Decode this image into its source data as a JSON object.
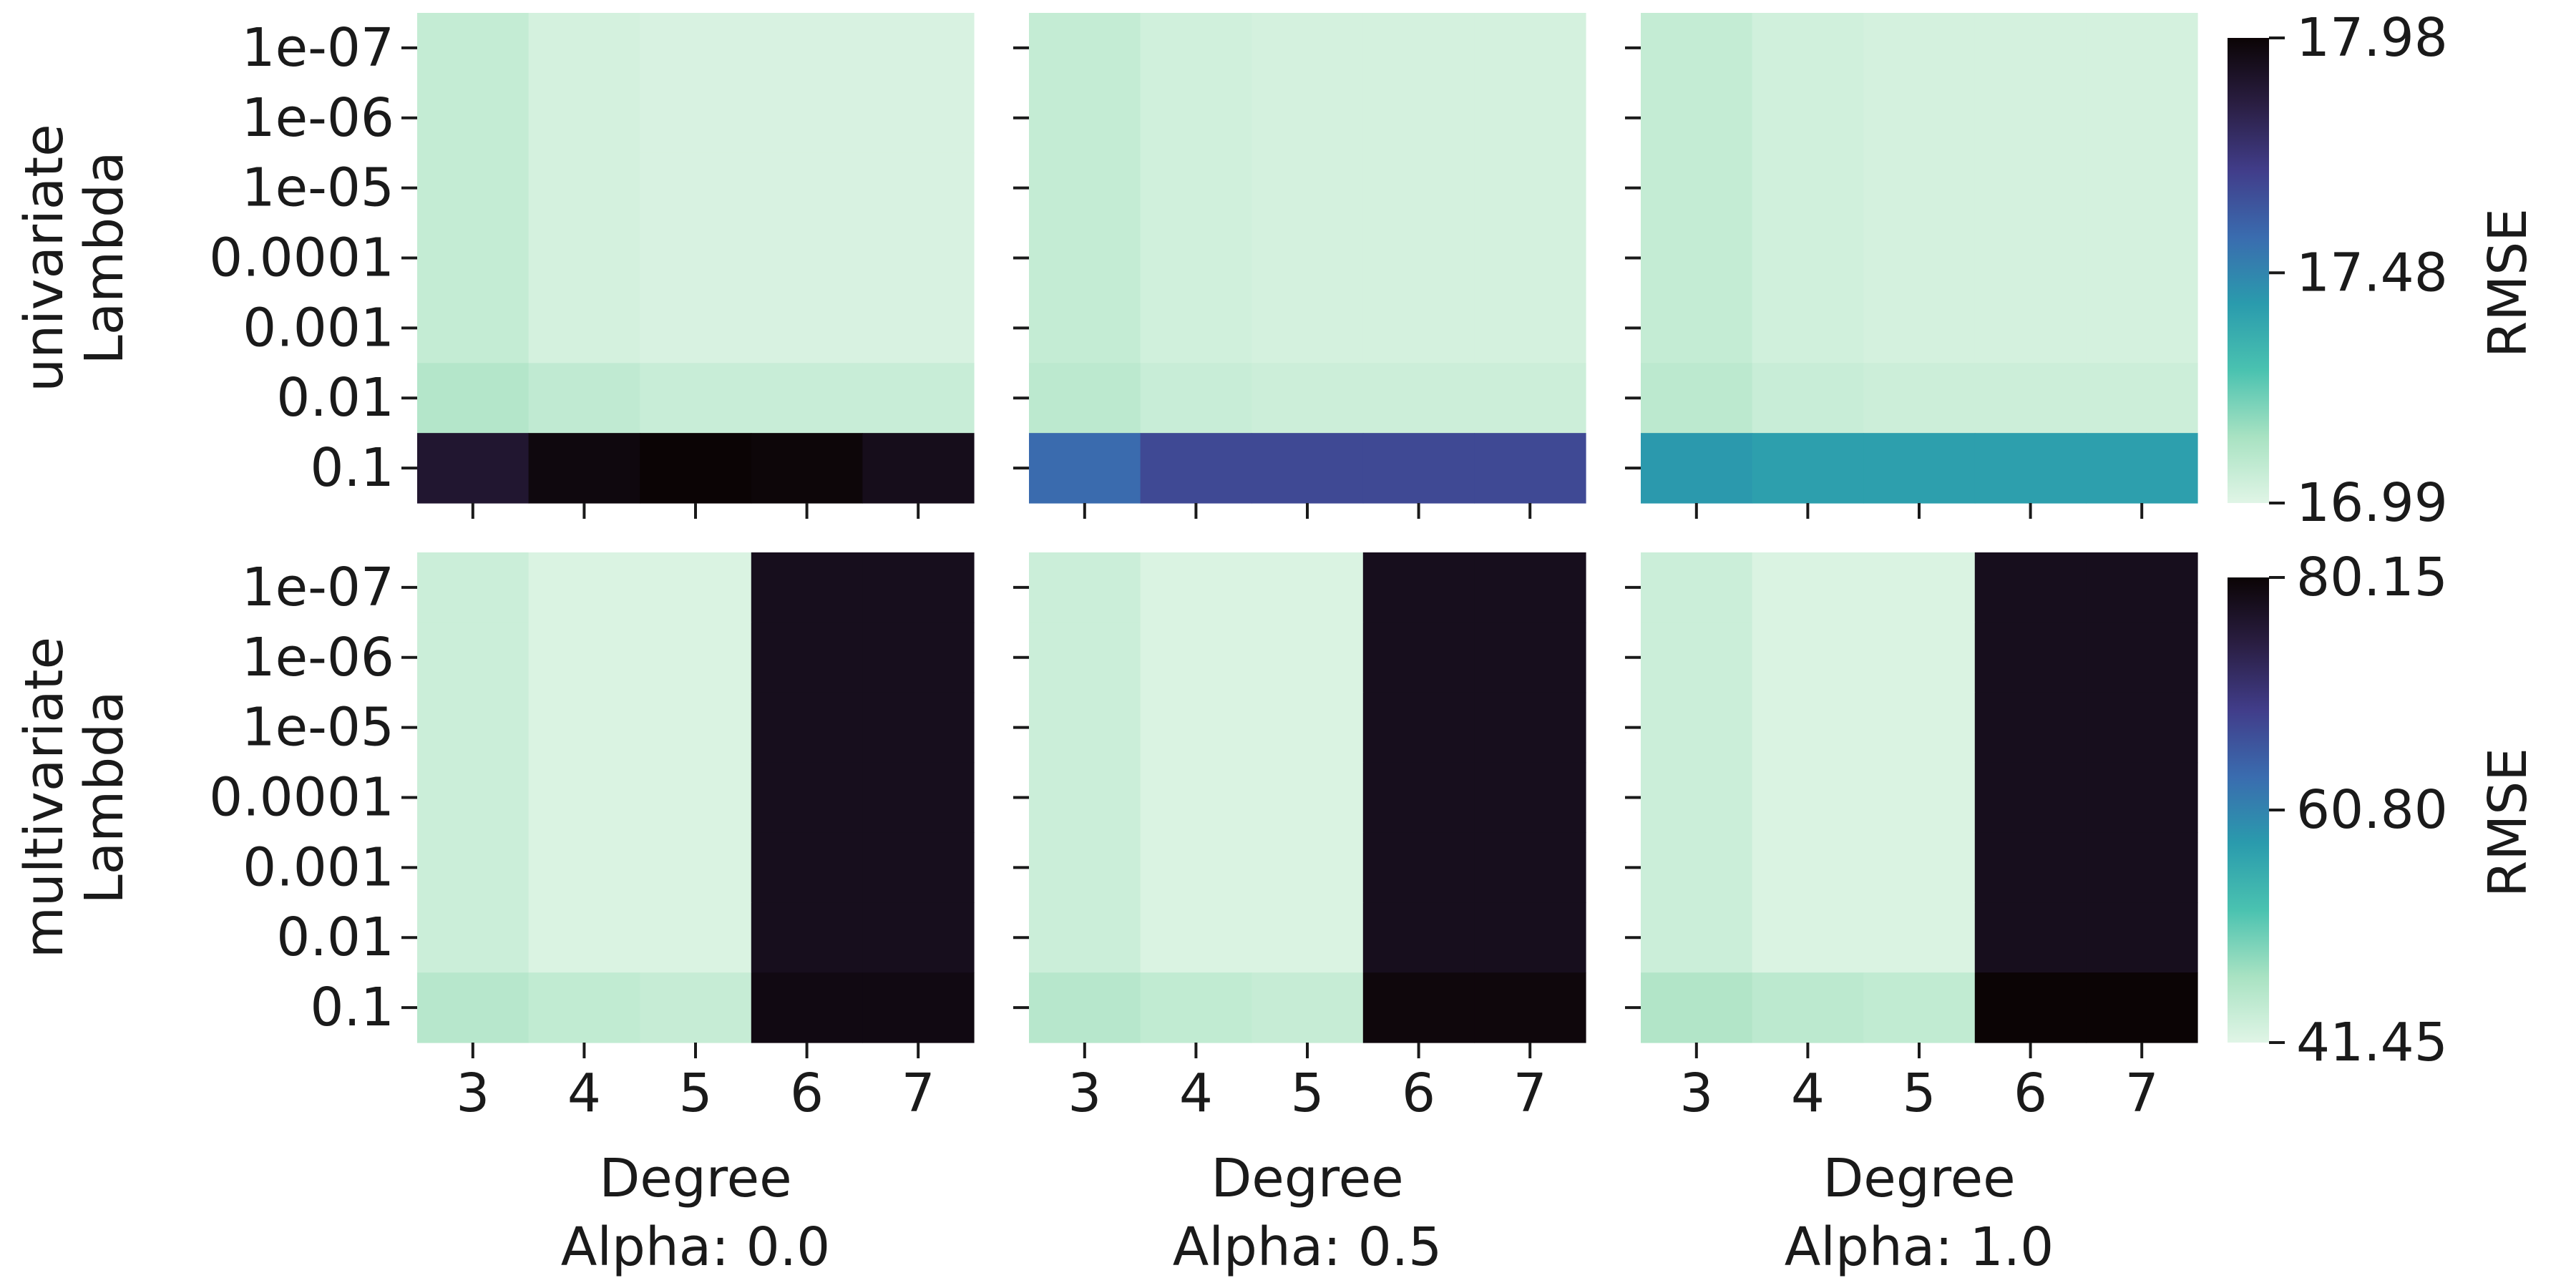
{
  "chart_data": {
    "type": "heatmap",
    "x": {
      "label": "Degree",
      "categories": [
        "3",
        "4",
        "5",
        "6",
        "7"
      ]
    },
    "y": {
      "label": "Lambda",
      "categories": [
        "1e-07",
        "1e-06",
        "1e-05",
        "0.0001",
        "0.001",
        "0.01",
        "0.1"
      ]
    },
    "columns": [
      {
        "label": "Alpha: 0.0"
      },
      {
        "label": "Alpha: 0.5"
      },
      {
        "label": "Alpha: 1.0"
      }
    ],
    "rows": [
      {
        "label": "univariate",
        "colorbar": {
          "label": "RMSE",
          "min": 16.99,
          "max": 17.98,
          "ticks": [
            "17.98",
            "17.48",
            "16.99"
          ]
        },
        "panels": [
          {
            "values": [
              [
                17.06,
                17.02,
                17.01,
                17.01,
                17.01
              ],
              [
                17.06,
                17.02,
                17.01,
                17.01,
                17.01
              ],
              [
                17.06,
                17.02,
                17.01,
                17.01,
                17.01
              ],
              [
                17.06,
                17.02,
                17.01,
                17.01,
                17.01
              ],
              [
                17.06,
                17.02,
                17.01,
                17.01,
                17.01
              ],
              [
                17.1,
                17.07,
                17.05,
                17.05,
                17.05
              ],
              [
                17.88,
                17.96,
                17.98,
                17.97,
                17.93
              ]
            ]
          },
          {
            "values": [
              [
                17.06,
                17.03,
                17.02,
                17.02,
                17.02
              ],
              [
                17.06,
                17.03,
                17.02,
                17.02,
                17.02
              ],
              [
                17.06,
                17.03,
                17.02,
                17.02,
                17.02
              ],
              [
                17.06,
                17.03,
                17.02,
                17.02,
                17.02
              ],
              [
                17.06,
                17.03,
                17.02,
                17.02,
                17.02
              ],
              [
                17.08,
                17.05,
                17.04,
                17.04,
                17.04
              ],
              [
                17.56,
                17.66,
                17.66,
                17.66,
                17.66
              ]
            ]
          },
          {
            "values": [
              [
                17.06,
                17.03,
                17.02,
                17.02,
                17.02
              ],
              [
                17.06,
                17.03,
                17.02,
                17.02,
                17.02
              ],
              [
                17.06,
                17.03,
                17.02,
                17.02,
                17.02
              ],
              [
                17.06,
                17.03,
                17.02,
                17.02,
                17.02
              ],
              [
                17.06,
                17.03,
                17.02,
                17.02,
                17.02
              ],
              [
                17.08,
                17.05,
                17.04,
                17.04,
                17.04
              ],
              [
                17.42,
                17.4,
                17.4,
                17.4,
                17.4
              ]
            ]
          }
        ]
      },
      {
        "label": "multivariate",
        "colorbar": {
          "label": "RMSE",
          "min": 41.45,
          "max": 80.15,
          "ticks": [
            "80.15",
            "60.80",
            "41.45"
          ]
        },
        "panels": [
          {
            "values": [
              [
                43.5,
                42.0,
                42.0,
                78.0,
                78.0
              ],
              [
                43.5,
                42.0,
                42.0,
                78.0,
                78.0
              ],
              [
                43.5,
                42.0,
                42.0,
                78.0,
                78.0
              ],
              [
                43.5,
                42.0,
                42.0,
                78.0,
                78.0
              ],
              [
                43.5,
                42.0,
                42.0,
                78.0,
                78.0
              ],
              [
                43.5,
                42.0,
                42.0,
                78.0,
                78.0
              ],
              [
                45.5,
                44.5,
                44.0,
                79.0,
                79.0
              ]
            ]
          },
          {
            "values": [
              [
                43.5,
                42.0,
                42.0,
                78.0,
                78.0
              ],
              [
                43.5,
                42.0,
                42.0,
                78.0,
                78.0
              ],
              [
                43.5,
                42.0,
                42.0,
                78.0,
                78.0
              ],
              [
                43.5,
                42.0,
                42.0,
                78.0,
                78.0
              ],
              [
                43.5,
                42.0,
                42.0,
                78.0,
                78.0
              ],
              [
                43.5,
                42.0,
                42.0,
                78.0,
                78.0
              ],
              [
                45.5,
                44.5,
                44.0,
                79.5,
                79.5
              ]
            ]
          },
          {
            "values": [
              [
                43.5,
                42.0,
                42.0,
                78.0,
                78.0
              ],
              [
                43.5,
                42.0,
                42.0,
                78.0,
                78.0
              ],
              [
                43.5,
                42.0,
                42.0,
                78.0,
                78.0
              ],
              [
                43.5,
                42.0,
                42.0,
                78.0,
                78.0
              ],
              [
                43.5,
                42.0,
                42.0,
                78.0,
                78.0
              ],
              [
                43.5,
                42.0,
                42.0,
                78.0,
                78.0
              ],
              [
                46.0,
                45.0,
                44.5,
                80.15,
                80.15
              ]
            ]
          }
        ]
      }
    ],
    "colormap": [
      "#e0f5e6",
      "#a8e2c2",
      "#4ac2b0",
      "#2a9bad",
      "#3a6caf",
      "#413d8a",
      "#2a1e42",
      "#0b0405"
    ],
    "grid": false,
    "legend": "colorbar right of each row"
  }
}
